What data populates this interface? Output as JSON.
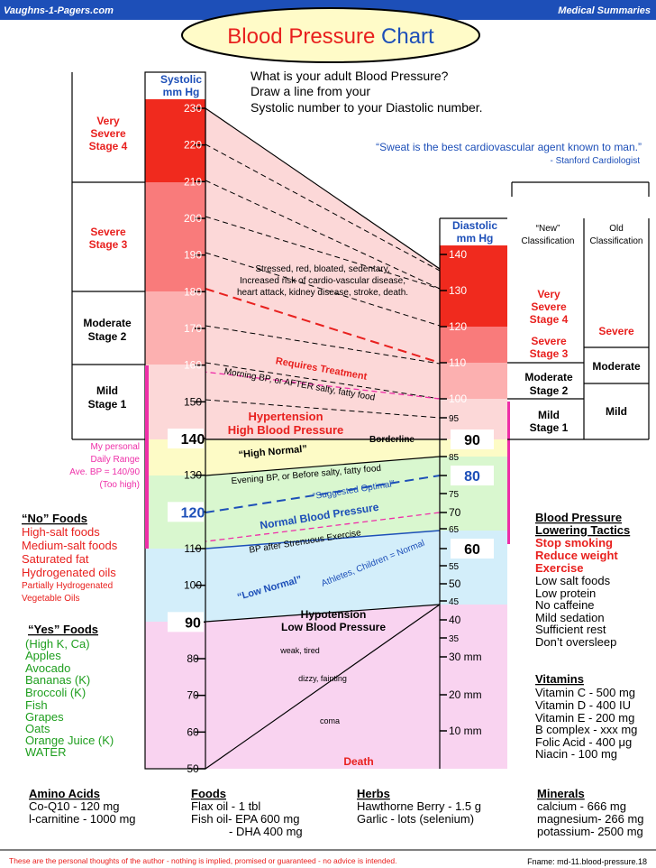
{
  "header": {
    "site": "Vaughns-1-Pagers.com",
    "section": "Medical Summaries",
    "title_main": "Blood Pressure",
    "title_accent": "Chart"
  },
  "instructions": [
    "What is your adult Blood Pressure?",
    "Draw a line from your",
    "Systolic number to your Diastolic number."
  ],
  "quote": {
    "text": "“Sweat is the best cardiovascular agent known to man.”",
    "attribution": "- Stanford Cardiologist"
  },
  "colors": {
    "very_severe": "#f02a1e",
    "severe": "#f97b7b",
    "moderate": "#fcb0b0",
    "mild": "#fcd8d8",
    "high_normal": "#fdfbc6",
    "normal": "#d9f7cf",
    "low_normal": "#d3eefa",
    "hypotension": "#f9d3f0",
    "title_blue": "#1d4fb8",
    "alert_red": "#e8201e",
    "foods_green": "#1e9e1e",
    "range_magenta": "#ee2fa8",
    "title_oval": "#fffbc8"
  },
  "chart_data": {
    "type": "nomogram",
    "systolic_axis": {
      "label": "Systolic mm Hg",
      "label_lines": [
        "Systolic",
        "mm Hg"
      ],
      "ticks": [
        230,
        220,
        210,
        200,
        190,
        180,
        170,
        160,
        150,
        140,
        130,
        120,
        110,
        100,
        90,
        80,
        70,
        60,
        50
      ],
      "bold_ticks": [
        140,
        120,
        90
      ]
    },
    "diastolic_axis": {
      "label": "Diastolic mm Hg",
      "label_lines": [
        "Diastolic",
        "mm Hg"
      ],
      "ticks": [
        140,
        130,
        120,
        110,
        100,
        95,
        90,
        85,
        80,
        75,
        70,
        65,
        60,
        55,
        50,
        45,
        40,
        35,
        "30 mm",
        "20 mm",
        "10 mm"
      ],
      "bold_ticks": [
        90,
        80,
        60
      ]
    },
    "systolic_stages": [
      {
        "label": "Very Severe Stage 4",
        "lines": [
          "Very",
          "Severe",
          "Stage 4"
        ],
        "range": [
          210,
          240
        ]
      },
      {
        "label": "Severe Stage 3",
        "lines": [
          "Severe",
          "Stage 3"
        ],
        "range": [
          180,
          210
        ]
      },
      {
        "label": "Moderate Stage 2",
        "lines": [
          "Moderate",
          "Stage 2"
        ],
        "range": [
          160,
          180
        ]
      },
      {
        "label": "Mild Stage 1",
        "lines": [
          "Mild",
          "Stage 1"
        ],
        "range": [
          140,
          160
        ]
      }
    ],
    "new_classification": {
      "heading_lines": [
        "“New”",
        "Classification"
      ],
      "stages": [
        {
          "label": "Very Severe Stage 4",
          "lines": [
            "Very",
            "Severe",
            "Stage 4"
          ]
        },
        {
          "label": "Severe Stage 3",
          "lines": [
            "Severe",
            "Stage 3"
          ]
        },
        {
          "label": "Moderate Stage 2",
          "lines": [
            "Moderate",
            "Stage 2"
          ]
        },
        {
          "label": "Mild Stage 1",
          "lines": [
            "Mild",
            "Stage 1"
          ]
        }
      ]
    },
    "old_classification": {
      "heading_lines": [
        "Old",
        "Classification"
      ],
      "stages": [
        "Severe",
        "Moderate",
        "Mild"
      ]
    },
    "zones": [
      {
        "name": "Hypertension",
        "label_lines": [
          "Hypertension",
          "High  Blood  Pressure"
        ],
        "systolic": [
          140,
          240
        ],
        "diastolic": [
          90,
          140
        ]
      },
      {
        "name": "High Normal",
        "label": "“High Normal”",
        "systolic": [
          130,
          140
        ],
        "diastolic": [
          85,
          90
        ]
      },
      {
        "name": "Normal",
        "label": "Normal Blood Pressure",
        "systolic": [
          110,
          130
        ],
        "diastolic": [
          60,
          85
        ]
      },
      {
        "name": "Low Normal",
        "label": "“Low Normal”",
        "systolic": [
          90,
          110
        ],
        "diastolic": [
          40,
          60
        ]
      },
      {
        "name": "Hypotension",
        "label_lines": [
          "Hypotension",
          "Low  Blood  Pressure"
        ],
        "systolic": [
          50,
          90
        ],
        "diastolic": [
          10,
          40
        ]
      }
    ],
    "reference_lines": [
      {
        "label": "Requires Treatment",
        "style": "dashed-red",
        "systolic": 180,
        "diastolic": 110
      },
      {
        "label": "“Suggested Optimal”",
        "style": "dashed-blue",
        "systolic": 120,
        "diastolic": 80
      },
      {
        "label": "My personal Daily Range",
        "style": "dashed-magenta",
        "systolic": 160,
        "diastolic": 100
      }
    ],
    "annotations": {
      "stressed_lines": [
        "Stressed, red, bloated, sedentary,",
        "Increased risk of cardio-vascular disease,",
        "heart attack, kidney disease, stroke, death."
      ],
      "requires_treatment": "Requires Treatment",
      "morning_bp": "Morning BP, or AFTER salty, fatty food",
      "borderline": "Borderline",
      "evening_bp": "Evening BP, or Before salty, fatty food",
      "suggested_optimal": "“Suggested Optimal”",
      "bp_after_exercise": "BP after Strenuous Exercise",
      "athletes": "Athletes, Children = Normal",
      "weak_tired": "weak, tired",
      "dizzy_fainting": "dizzy, fainting",
      "coma": "coma",
      "death": "Death"
    },
    "personal_range": {
      "lines": [
        "My personal",
        "Daily Range",
        "Ave. BP = 140/90",
        "(Too high)"
      ],
      "systolic_range": [
        110,
        160
      ],
      "diastolic_range": [
        70,
        100
      ]
    }
  },
  "foods": {
    "no_title": "“No” Foods",
    "no_items": [
      "High-salt foods",
      "Medium-salt foods",
      "Saturated fat",
      "Hydrogenated oils"
    ],
    "no_small": [
      "Partially Hydrogenated",
      "Vegetable Oils"
    ],
    "yes_title": "“Yes” Foods",
    "yes_items": [
      "(High K, Ca)",
      "Apples",
      "Avocado",
      "Bananas (K)",
      "Broccoli (K)",
      "Fish",
      "Grapes",
      "Oats",
      "Orange Juice (K)",
      "WATER"
    ]
  },
  "tactics": {
    "title_lines": [
      "Blood Pressure",
      "Lowering Tactics"
    ],
    "red_items": [
      "Stop smoking",
      "Reduce weight",
      "Exercise"
    ],
    "items": [
      "Low salt foods",
      "Low protein",
      "No caffeine",
      "Mild sedation",
      "Sufficient rest",
      "Don’t oversleep"
    ]
  },
  "vitamins": {
    "title": "Vitamins",
    "items": [
      "Vitamin C  - 500 mg",
      "Vitamin D  - 400 IU",
      "Vitamin E  - 200 mg",
      "B complex - xxx mg",
      "Folic Acid  - 400 μg",
      "Niacin      - 100 mg"
    ]
  },
  "bottom": {
    "amino_title": "Amino Acids",
    "amino_items": [
      "Co-Q10  -     120 mg",
      "l-carnitine - 1000 mg"
    ],
    "foods_title": "Foods",
    "foods_items": [
      "Flax oil   -   1 tbl",
      "Fish oil- EPA 600 mg",
      "- DHA 400 mg"
    ],
    "herbs_title": "Herbs",
    "herbs_items": [
      "Hawthorne Berry - 1.5 g",
      "Garlic - lots (selenium)"
    ],
    "minerals_title": "Minerals",
    "minerals_items": [
      "calcium      -  666 mg",
      "magnesium- 266 mg",
      "potassium- 2500 mg"
    ]
  },
  "footer": {
    "disclaimer": "These are the personal thoughts of the author - nothing is implied, promised or guaranteed - no advice is intended.",
    "fname": "Fname: md-11.blood-pressure.18"
  }
}
